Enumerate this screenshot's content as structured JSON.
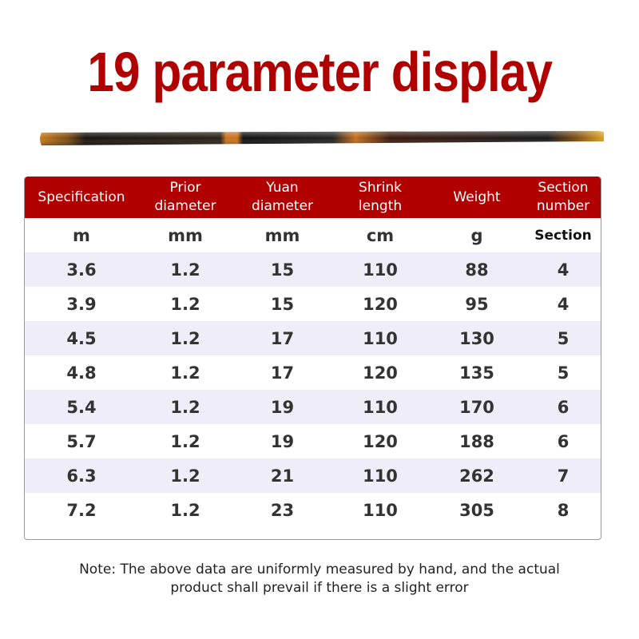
{
  "title": "19 parameter display",
  "colors": {
    "accent": "#b00000",
    "row_shade": "#efedf8"
  },
  "table": {
    "headers": [
      [
        "Specification",
        ""
      ],
      [
        "Prior",
        "diameter"
      ],
      [
        "Yuan",
        "diameter"
      ],
      [
        "Shrink",
        "length"
      ],
      [
        "Weight",
        ""
      ],
      [
        "Section",
        "number"
      ]
    ],
    "units": [
      "m",
      "mm",
      "mm",
      "cm",
      "g",
      "Section"
    ],
    "rows": [
      [
        "3.6",
        "1.2",
        "15",
        "110",
        "88",
        "4"
      ],
      [
        "3.9",
        "1.2",
        "15",
        "120",
        "95",
        "4"
      ],
      [
        "4.5",
        "1.2",
        "17",
        "110",
        "130",
        "5"
      ],
      [
        "4.8",
        "1.2",
        "17",
        "120",
        "135",
        "5"
      ],
      [
        "5.4",
        "1.2",
        "19",
        "110",
        "170",
        "6"
      ],
      [
        "5.7",
        "1.2",
        "19",
        "120",
        "188",
        "6"
      ],
      [
        "6.3",
        "1.2",
        "21",
        "110",
        "262",
        "7"
      ],
      [
        "7.2",
        "1.2",
        "23",
        "110",
        "305",
        "8"
      ]
    ]
  },
  "note": [
    "Note: The above data are uniformly measured by hand, and the actual",
    "product shall prevail if there is a slight error"
  ]
}
